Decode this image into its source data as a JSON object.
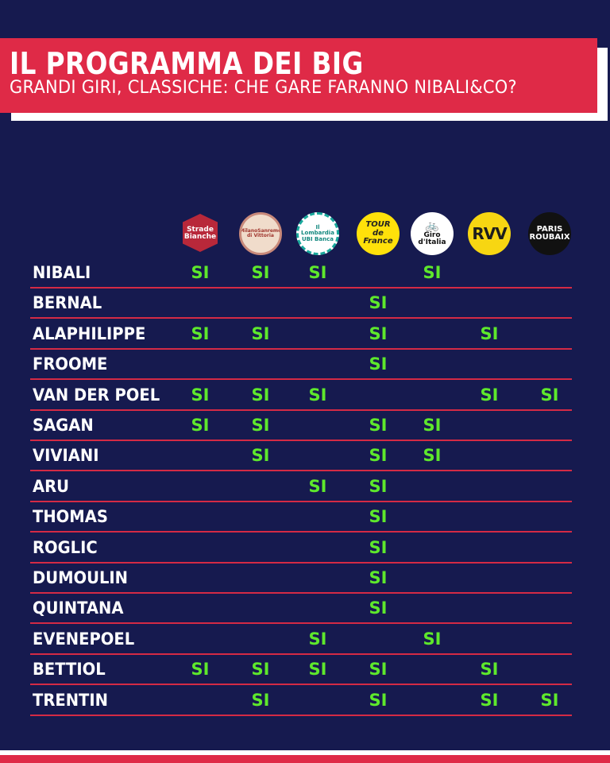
{
  "header": {
    "title": "IL PROGRAMMA DEI BIG",
    "subtitle": "GRANDI GIRI, CLASSICHE: CHE GARE FARANNO NIBALI&CO?"
  },
  "races": [
    {
      "id": "strade",
      "lines": [
        "Strade Bianche"
      ]
    },
    {
      "id": "milano",
      "lines": [
        "MilanoSanremo",
        "di Vittoria"
      ]
    },
    {
      "id": "lombardia",
      "lines": [
        "Il Lombardia",
        "UBI Banca"
      ]
    },
    {
      "id": "tour",
      "lines": [
        "TOUR",
        "de France"
      ]
    },
    {
      "id": "giro",
      "lines": [
        "🚲",
        "Giro d'Italia"
      ]
    },
    {
      "id": "rvv",
      "lines": [
        "RVV"
      ]
    },
    {
      "id": "paris",
      "lines": [
        "PARIS",
        "ROUBAIX"
      ]
    }
  ],
  "mark": "SI",
  "riders": [
    {
      "name": "NIBALI",
      "races": [
        1,
        1,
        1,
        0,
        1,
        0,
        0
      ]
    },
    {
      "name": "BERNAL",
      "races": [
        0,
        0,
        0,
        1,
        0,
        0,
        0
      ]
    },
    {
      "name": "ALAPHILIPPE",
      "races": [
        1,
        1,
        0,
        1,
        0,
        1,
        0
      ]
    },
    {
      "name": "FROOME",
      "races": [
        0,
        0,
        0,
        1,
        0,
        0,
        0
      ]
    },
    {
      "name": "VAN DER POEL",
      "races": [
        1,
        1,
        1,
        0,
        0,
        1,
        1
      ]
    },
    {
      "name": "SAGAN",
      "races": [
        1,
        1,
        0,
        1,
        1,
        0,
        0
      ]
    },
    {
      "name": "VIVIANI",
      "races": [
        0,
        1,
        0,
        1,
        1,
        0,
        0
      ]
    },
    {
      "name": "ARU",
      "races": [
        0,
        0,
        1,
        1,
        0,
        0,
        0
      ]
    },
    {
      "name": "THOMAS",
      "races": [
        0,
        0,
        0,
        1,
        0,
        0,
        0
      ]
    },
    {
      "name": "ROGLIC",
      "races": [
        0,
        0,
        0,
        1,
        0,
        0,
        0
      ]
    },
    {
      "name": "DUMOULIN",
      "races": [
        0,
        0,
        0,
        1,
        0,
        0,
        0
      ]
    },
    {
      "name": "QUINTANA",
      "races": [
        0,
        0,
        0,
        1,
        0,
        0,
        0
      ]
    },
    {
      "name": "EVENEPOEL",
      "races": [
        0,
        0,
        1,
        0,
        1,
        0,
        0
      ]
    },
    {
      "name": "BETTIOL",
      "races": [
        1,
        1,
        1,
        1,
        0,
        1,
        0
      ]
    },
    {
      "name": "TRENTIN",
      "races": [
        0,
        1,
        0,
        1,
        0,
        1,
        1
      ]
    }
  ],
  "colors": {
    "background": "#161a4f",
    "header_red": "#df2a47",
    "si_green": "#5ee82c",
    "divider": "#d42a45"
  }
}
